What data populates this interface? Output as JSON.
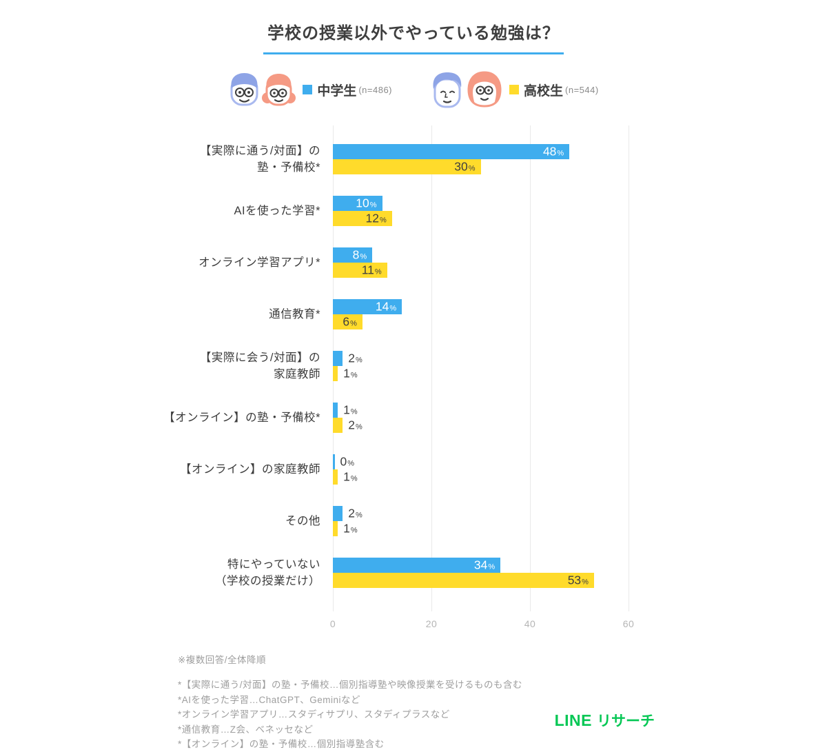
{
  "title": "学校の授業以外でやっている勉強は？",
  "legend": {
    "items": [
      {
        "label": "中学生",
        "n": "(n=486)",
        "color": "#3fadee"
      },
      {
        "label": "高校生",
        "n": "(n=544)",
        "color": "#ffdb2b"
      }
    ]
  },
  "chart_data": {
    "type": "bar",
    "orientation": "horizontal",
    "unit": "%",
    "title": "学校の授業以外でやっている勉強は？",
    "categories": [
      [
        "【実際に通う/対面】の",
        "塾・予備校*"
      ],
      [
        "AIを使った学習*"
      ],
      [
        "オンライン学習アプリ*"
      ],
      [
        "通信教育*"
      ],
      [
        "【実際に会う/対面】の",
        "家庭教師"
      ],
      [
        "【オンライン】の塾・予備校*"
      ],
      [
        "【オンライン】の家庭教師"
      ],
      [
        "その他"
      ],
      [
        "特にやっていない",
        "（学校の授業だけ）"
      ]
    ],
    "series": [
      {
        "name": "中学生",
        "color": "#3fadee",
        "inside_label_color": "#ffffff",
        "values": [
          48,
          10,
          8,
          14,
          2,
          1,
          0,
          2,
          34
        ]
      },
      {
        "name": "高校生",
        "color": "#ffdb2b",
        "inside_label_color": "#3f3f3f",
        "values": [
          30,
          12,
          11,
          6,
          1,
          2,
          1,
          1,
          53
        ]
      }
    ],
    "xticks": [
      0,
      20,
      40,
      60
    ],
    "xlim": [
      0,
      64
    ],
    "grid": "vertical",
    "legend_position": "top",
    "value_label_inside_threshold": 6
  },
  "notes": {
    "top": "※複数回答/全体降順",
    "footnotes": [
      "*【実際に通う/対面】の塾・予備校…個別指導塾や映像授業を受けるものも含む",
      "*AIを使った学習…ChatGPT、Geminiなど",
      "*オンライン学習アプリ…スタディサプリ、スタディプラスなど",
      "*通信教育…Z会、ベネッセなど",
      "*【オンライン】の塾・予備校…個別指導塾含む"
    ]
  },
  "logo": {
    "brand": "LINE",
    "service": "リサーチ"
  }
}
